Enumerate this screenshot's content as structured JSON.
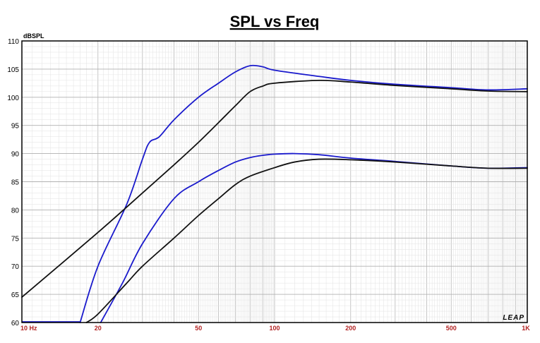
{
  "chart_data": {
    "type": "line",
    "title": "SPL vs Freq",
    "ylabel": "dBSPL",
    "xlabel": "",
    "xscale": "log",
    "xlim": [
      10,
      1000
    ],
    "ylim": [
      60,
      110
    ],
    "grid": true,
    "legend": "none",
    "watermark": "LEAP",
    "y_ticks": [
      "60",
      "65",
      "70",
      "75",
      "80",
      "85",
      "90",
      "95",
      "100",
      "105",
      "110"
    ],
    "x_ticks": [
      {
        "value": 10,
        "label": "10 Hz"
      },
      {
        "value": 20,
        "label": "20"
      },
      {
        "value": 50,
        "label": "50"
      },
      {
        "value": 100,
        "label": "100"
      },
      {
        "value": 200,
        "label": "200"
      },
      {
        "value": 500,
        "label": "500"
      },
      {
        "value": 1000,
        "label": "1K"
      }
    ],
    "series": [
      {
        "color": "#1a1acc",
        "points": [
          [
            17,
            60
          ],
          [
            20,
            70
          ],
          [
            26,
            81
          ],
          [
            30,
            89
          ],
          [
            32,
            92
          ],
          [
            35,
            93
          ],
          [
            40,
            96
          ],
          [
            50,
            100
          ],
          [
            60,
            102.5
          ],
          [
            70,
            104.5
          ],
          [
            80,
            105.6
          ],
          [
            90,
            105.4
          ],
          [
            100,
            104.8
          ],
          [
            150,
            103.7
          ],
          [
            200,
            103
          ],
          [
            300,
            102.3
          ],
          [
            500,
            101.7
          ],
          [
            700,
            101.3
          ],
          [
            1000,
            101.5
          ]
        ]
      },
      {
        "color": "#111111",
        "points": [
          [
            10,
            64.5
          ],
          [
            20,
            76
          ],
          [
            30,
            83
          ],
          [
            40,
            88
          ],
          [
            50,
            92
          ],
          [
            60,
            95.5
          ],
          [
            70,
            98.5
          ],
          [
            80,
            101
          ],
          [
            90,
            102
          ],
          [
            100,
            102.5
          ],
          [
            150,
            103
          ],
          [
            200,
            102.7
          ],
          [
            300,
            102.1
          ],
          [
            500,
            101.5
          ],
          [
            700,
            101.1
          ],
          [
            1000,
            101
          ]
        ]
      },
      {
        "color": "#1a1acc",
        "points": [
          [
            20.5,
            60
          ],
          [
            25,
            67
          ],
          [
            30,
            74
          ],
          [
            40,
            82
          ],
          [
            50,
            85
          ],
          [
            60,
            87
          ],
          [
            70,
            88.5
          ],
          [
            80,
            89.3
          ],
          [
            90,
            89.7
          ],
          [
            100,
            89.9
          ],
          [
            120,
            90
          ],
          [
            150,
            89.8
          ],
          [
            200,
            89.2
          ],
          [
            300,
            88.6
          ],
          [
            500,
            87.8
          ],
          [
            700,
            87.4
          ],
          [
            1000,
            87.5
          ]
        ]
      },
      {
        "color": "#111111",
        "points": [
          [
            18,
            60
          ],
          [
            20,
            61.5
          ],
          [
            26,
            67
          ],
          [
            30,
            70
          ],
          [
            40,
            75
          ],
          [
            50,
            79
          ],
          [
            60,
            82
          ],
          [
            70,
            84.5
          ],
          [
            80,
            86
          ],
          [
            100,
            87.5
          ],
          [
            120,
            88.5
          ],
          [
            150,
            89
          ],
          [
            200,
            88.9
          ],
          [
            300,
            88.5
          ],
          [
            500,
            87.8
          ],
          [
            700,
            87.4
          ],
          [
            1000,
            87.4
          ]
        ]
      }
    ]
  }
}
